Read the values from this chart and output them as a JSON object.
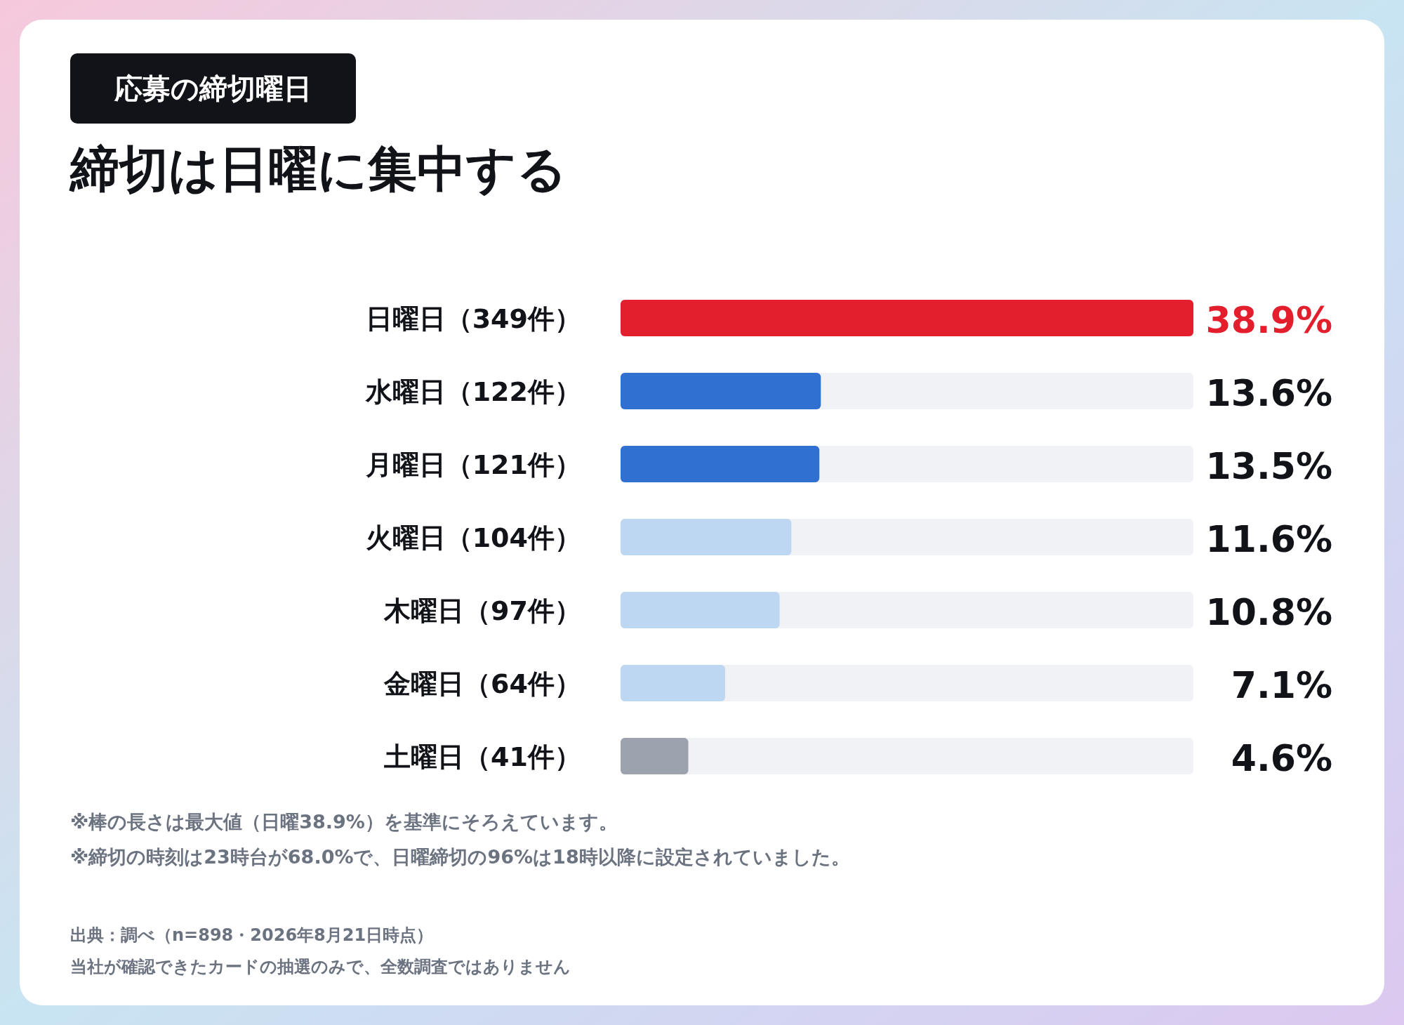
{
  "chart_data": {
    "type": "bar",
    "orientation": "horizontal",
    "subtitle": "応募の締切曜日",
    "title": "締切は日曜に集中する",
    "categories": [
      "日曜日（349件）",
      "水曜日（122件）",
      "月曜日（121件）",
      "火曜日（104件）",
      "木曜日（97件）",
      "金曜日（64件）",
      "土曜日（41件）"
    ],
    "values": [
      38.9,
      13.6,
      13.5,
      11.6,
      10.8,
      7.1,
      4.6
    ],
    "colors": [
      "#e31e2d",
      "#3070d0",
      "#3070d0",
      "#bdd6f2",
      "#bdd6f2",
      "#bdd6f2",
      "#9ca3af"
    ],
    "value_labels": [
      "38.9%",
      "13.6%",
      "13.5%",
      "11.6%",
      "10.8%",
      "7.1%",
      "4.6%"
    ],
    "xlim": [
      0,
      38.9
    ],
    "tick_labels": false,
    "annotations": [
      "※棒の長さは最大値（日曜38.9%）を基準にそろえています。",
      "※締切の時刻は23時台が68.0%で、日曜締切の96%は18時以降に設定されていました。",
      "出典：調べ（n=898・2026年8月21日時点）",
      "当社が確認できたカードの抽選のみで、全数調査ではありません"
    ]
  }
}
